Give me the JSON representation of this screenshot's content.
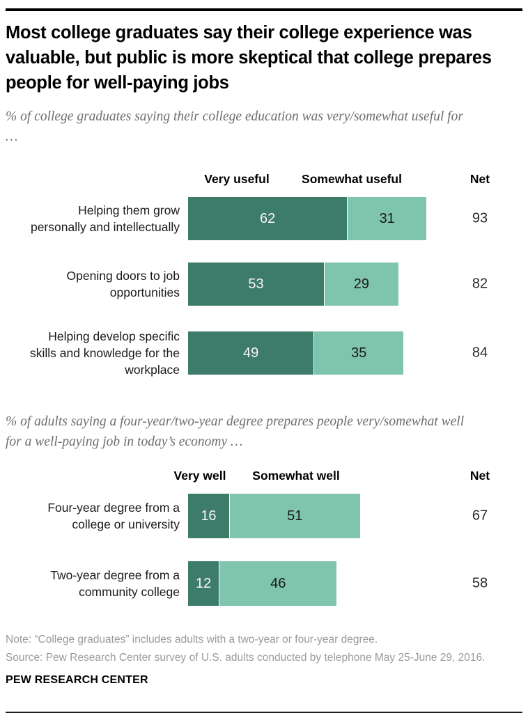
{
  "header": {
    "title": "Most college graduates say their college experience was valuable, but public is more skeptical that college prepares people for well-paying jobs"
  },
  "chart_data": [
    {
      "type": "bar",
      "orientation": "horizontal-stacked",
      "subtitle": "% of college graduates saying their college education was very/somewhat useful for …",
      "net_label": "Net",
      "categories": [
        "Helping them grow personally and intellectually",
        "Opening doors to job opportunities",
        "Helping develop specific skills and knowledge for the workplace"
      ],
      "series": [
        {
          "name": "Very useful",
          "values": [
            62,
            53,
            49
          ]
        },
        {
          "name": "Somewhat useful",
          "values": [
            31,
            29,
            35
          ]
        }
      ],
      "net": [
        93,
        82,
        84
      ],
      "xlim": [
        0,
        100
      ],
      "legend_position": "top",
      "colors": {
        "very": "#3D7B6B",
        "somewhat": "#7FC4AC"
      }
    },
    {
      "type": "bar",
      "orientation": "horizontal-stacked",
      "subtitle": "% of adults saying a four-year/two-year degree prepares people very/somewhat well for a well-paying job in today’s economy …",
      "net_label": "Net",
      "categories": [
        "Four-year degree from a college or university",
        "Two-year degree from a community college"
      ],
      "series": [
        {
          "name": "Very well",
          "values": [
            16,
            12
          ]
        },
        {
          "name": "Somewhat well",
          "values": [
            51,
            46
          ]
        }
      ],
      "net": [
        67,
        58
      ],
      "xlim": [
        0,
        100
      ],
      "legend_position": "top",
      "colors": {
        "very": "#3D7B6B",
        "somewhat": "#7FC4AC"
      }
    }
  ],
  "footer": {
    "note": "Note: “College graduates” includes adults with a two-year or four-year degree.",
    "source": "Source: Pew Research Center survey of U.S. adults conducted by telephone May 25-June 29, 2016.",
    "brand": "PEW RESEARCH CENTER"
  }
}
